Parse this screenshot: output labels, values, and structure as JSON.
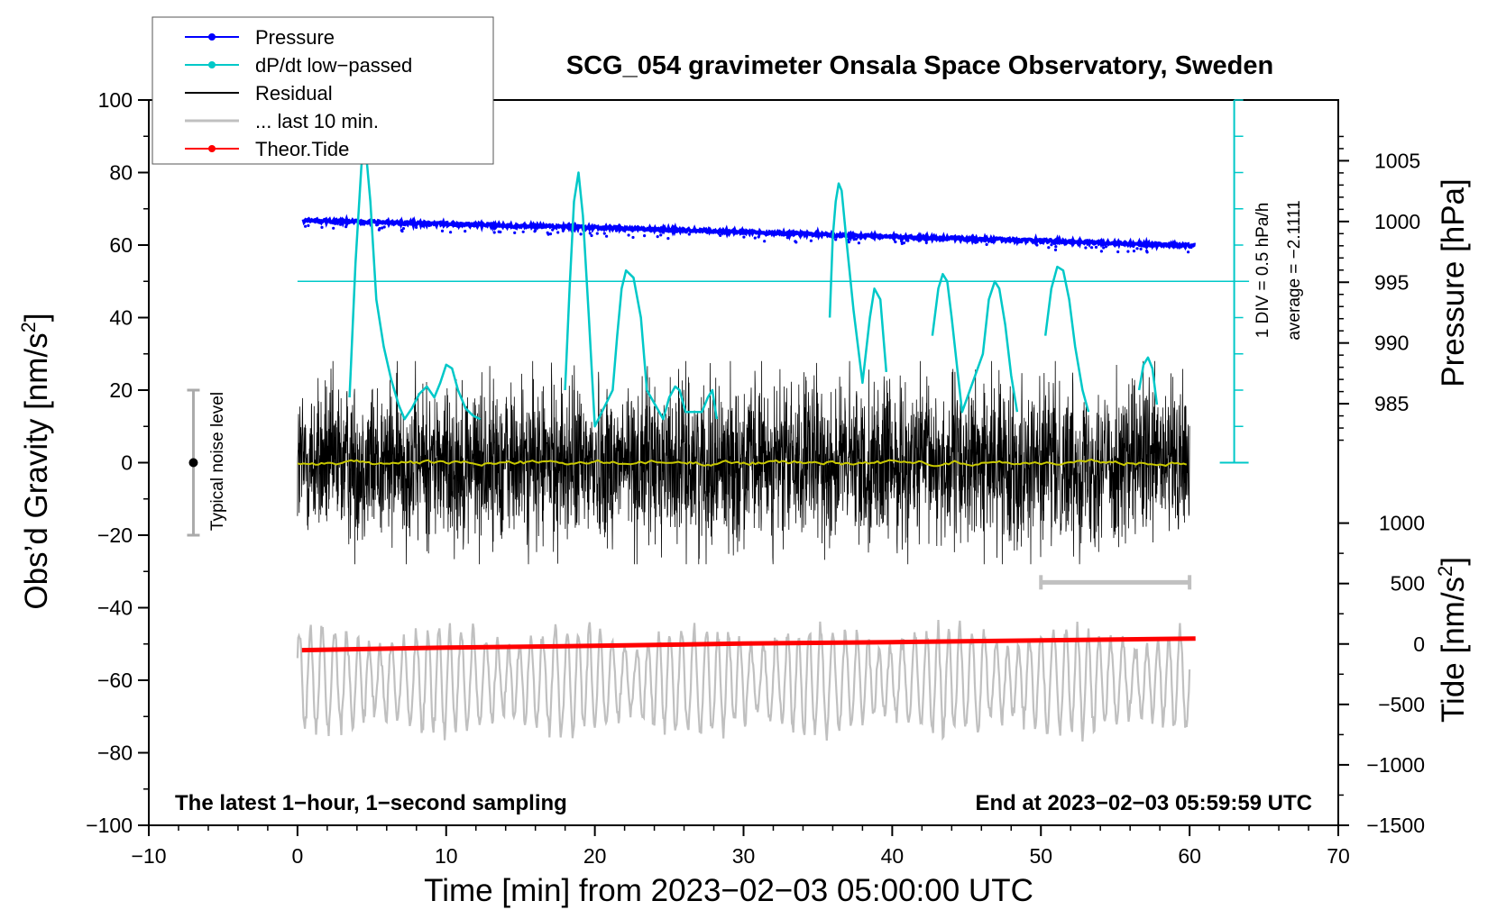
{
  "chart_data": {
    "type": "line",
    "title": "SCG_054 gravimeter Onsala Space Observatory, Sweden",
    "xlabel": "Time [min] from 2023−02−03 05:00:00 UTC",
    "ylabel_left": "Obs’d Gravity [nm/s",
    "ylabel_right_top": "Pressure [hPa]",
    "ylabel_right_bottom": "Tide [nm/s",
    "superscript": "2",
    "ylabel_close": "]",
    "xlim": [
      -10,
      70
    ],
    "ylim": [
      -100,
      100
    ],
    "x_ticks": [
      "−10",
      "0",
      "10",
      "20",
      "30",
      "40",
      "50",
      "60",
      "70"
    ],
    "x_tick_values": [
      -10,
      0,
      10,
      20,
      30,
      40,
      50,
      60,
      70
    ],
    "y_ticks": [
      "100",
      "80",
      "60",
      "40",
      "20",
      "0",
      "−20",
      "−40",
      "−60",
      "−80",
      "−100"
    ],
    "y_tick_values": [
      100,
      80,
      60,
      40,
      20,
      0,
      -20,
      -40,
      -60,
      -80,
      -100
    ],
    "pressure_axis": {
      "ticks": [
        "1005",
        "1000",
        "995",
        "990",
        "985"
      ],
      "tick_values": [
        1005,
        1000,
        995,
        990,
        985
      ],
      "gravity_at_1000": 66.5,
      "gravity_per_hPa": 3.35
    },
    "tide_axis": {
      "ticks": [
        "1000",
        "500",
        "0",
        "−500",
        "−1000",
        "−1500"
      ],
      "tick_values": [
        1000,
        500,
        0,
        -500,
        -1000,
        -1500
      ],
      "gravity_at_0": -50,
      "gravity_per_unit": 0.03333
    },
    "legend": [
      {
        "label": "Pressure",
        "color": "#0000ff",
        "marker": true
      },
      {
        "label": "dP/dt low−passed",
        "color": "#00c8c8",
        "marker": true
      },
      {
        "label": "Residual",
        "color": "#000000",
        "marker": false
      },
      {
        "label": "... last 10 min.",
        "color": "#c0c0c0",
        "marker": false
      },
      {
        "label": "Theor.Tide",
        "color": "#ff0000",
        "marker": true
      }
    ],
    "series": [
      {
        "name": "Pressure",
        "color": "#0000ff",
        "x": [
          0.4,
          10,
          20,
          30,
          40,
          50,
          60.4
        ],
        "y": [
          66.8,
          65.8,
          64.8,
          63.6,
          62.3,
          61.2,
          59.8
        ]
      },
      {
        "name": "dP/dt low−passed",
        "color": "#00c8c8",
        "x": [
          3.5,
          3.9,
          4.3,
          4.6,
          4.9,
          5.3,
          5.8,
          6.3,
          6.8,
          7.2,
          7.7,
          8.2,
          8.7,
          9.2,
          9.6,
          10.0,
          10.4,
          10.8,
          11.3,
          11.8,
          12.3,
          18.0,
          18.3,
          18.6,
          18.9,
          19.2,
          19.6,
          20.0,
          21.2,
          21.5,
          21.8,
          22.1,
          22.6,
          23.1,
          23.5,
          24.6,
          25.0,
          25.4,
          25.7,
          26.1,
          27.2,
          27.6,
          27.9,
          28.2,
          35.8,
          36.0,
          36.2,
          36.4,
          36.6,
          36.9,
          37.4,
          38.0,
          38.5,
          38.8,
          39.2,
          39.6,
          42.7,
          43.1,
          43.4,
          43.7,
          44.0,
          44.4,
          44.7,
          46.1,
          46.5,
          46.9,
          47.2,
          47.6,
          48.0,
          48.4,
          50.3,
          50.7,
          51.1,
          51.5,
          51.9,
          52.3,
          52.8,
          53.2,
          56.6,
          56.9,
          57.2,
          57.5,
          57.8
        ],
        "y": [
          18,
          55,
          82,
          86,
          72,
          45,
          32,
          23,
          16,
          12,
          15,
          19,
          21,
          18,
          22,
          27,
          26,
          20,
          15,
          13,
          12,
          20,
          48,
          72,
          80,
          68,
          40,
          10,
          20,
          35,
          48,
          53,
          51,
          40,
          20,
          12,
          18,
          21,
          20,
          14,
          14,
          18,
          20,
          12,
          40,
          62,
          72,
          77,
          75,
          62,
          42,
          22,
          40,
          48,
          45,
          25,
          35,
          48,
          52,
          50,
          40,
          25,
          14,
          30,
          45,
          50,
          48,
          38,
          24,
          14,
          35,
          48,
          54,
          53,
          45,
          32,
          20,
          14,
          20,
          27,
          29,
          26,
          16
        ]
      },
      {
        "name": "Residual",
        "color": "#000000",
        "x_range": [
          0,
          60
        ],
        "amplitude_nm_s2": 20
      },
      {
        "name": "... last 10 min.",
        "color": "#c0c0c0",
        "x_range": [
          0,
          60
        ],
        "center": -60,
        "amplitude_nm_s2": 20
      },
      {
        "name": "Theor.Tide",
        "color": "#ff0000",
        "x": [
          0.3,
          10,
          20,
          30,
          40,
          50,
          60.4
        ],
        "y": [
          -51.7,
          -51.0,
          -50.5,
          -49.9,
          -49.5,
          -49.0,
          -48.5
        ]
      },
      {
        "name": "Residual smoothed",
        "color": "#c8c800",
        "x_range": [
          0,
          60
        ],
        "center": 0
      }
    ],
    "reference_line": {
      "y": 50,
      "x_range": [
        0,
        64
      ]
    },
    "scale_bar_pressure": {
      "x": 63,
      "y_range": [
        0,
        100
      ],
      "divisions": 10,
      "label_1": "1 DIV = 0.5 hPa/h",
      "label_2": "average = −2.1111"
    },
    "noise_bar": {
      "x": -7,
      "y_range": [
        -20,
        20
      ],
      "label": "Typical noise level"
    },
    "window_bar": {
      "x_range": [
        50,
        60
      ],
      "y": -33
    },
    "annotations": {
      "bottom_left": "The latest 1−hour, 1−second sampling",
      "bottom_right": "End at 2023−02−03 05:59:59 UTC"
    }
  }
}
